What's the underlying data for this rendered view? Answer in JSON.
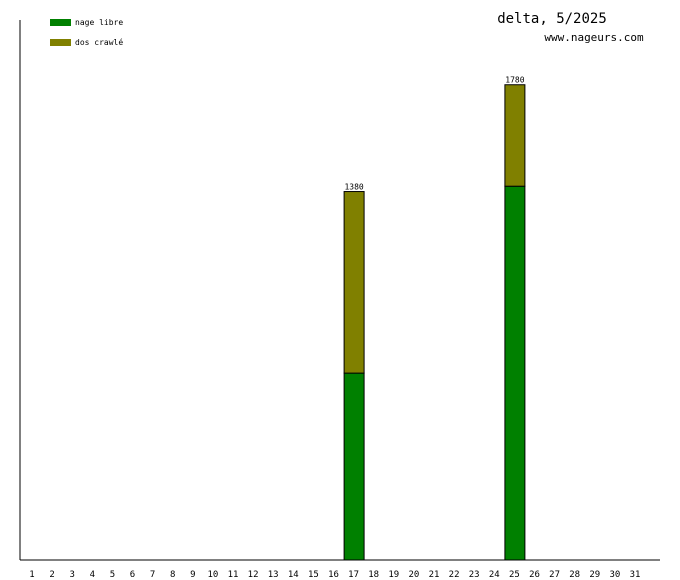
{
  "chart_data": {
    "type": "bar",
    "stacked": true,
    "title": "delta, 5/2025",
    "subtitle": "www.nageurs.com",
    "xlabel": "",
    "ylabel": "",
    "ylim": [
      0,
      2000
    ],
    "grid": false,
    "legend_position": "top-left",
    "categories": [
      "1",
      "2",
      "3",
      "4",
      "5",
      "6",
      "7",
      "8",
      "9",
      "10",
      "11",
      "12",
      "13",
      "14",
      "15",
      "16",
      "17",
      "18",
      "19",
      "20",
      "21",
      "22",
      "23",
      "24",
      "25",
      "26",
      "27",
      "28",
      "29",
      "30",
      "31"
    ],
    "series": [
      {
        "name": "nage libre",
        "color": "#008000",
        "values": [
          0,
          0,
          0,
          0,
          0,
          0,
          0,
          0,
          0,
          0,
          0,
          0,
          0,
          0,
          0,
          0,
          700,
          0,
          0,
          0,
          0,
          0,
          0,
          0,
          1400,
          0,
          0,
          0,
          0,
          0,
          0
        ]
      },
      {
        "name": "dos crawlé",
        "color": "#808000",
        "values": [
          0,
          0,
          0,
          0,
          0,
          0,
          0,
          0,
          0,
          0,
          0,
          0,
          0,
          0,
          0,
          0,
          680,
          0,
          0,
          0,
          0,
          0,
          0,
          0,
          380,
          0,
          0,
          0,
          0,
          0,
          0
        ]
      }
    ],
    "totals": [
      null,
      null,
      null,
      null,
      null,
      null,
      null,
      null,
      null,
      null,
      null,
      null,
      null,
      null,
      null,
      null,
      "1380",
      null,
      null,
      null,
      null,
      null,
      null,
      null,
      "1780",
      null,
      null,
      null,
      null,
      null,
      null
    ]
  }
}
